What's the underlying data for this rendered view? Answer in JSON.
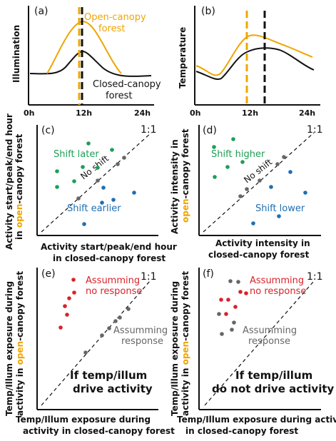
{
  "colors": {
    "open": "#f0a500",
    "closed": "#111111",
    "later": "#1f9e57",
    "earlier": "#1f6fb2",
    "no_response": "#d8232a",
    "response": "#666666"
  },
  "panel_a": {
    "tag": "(a)",
    "ylabel": "Illumination",
    "open_label_1": "Open-canopy",
    "open_label_2": "forest",
    "closed_label_1": "Closed-canopy",
    "closed_label_2": "forest",
    "tick_0": "0h",
    "tick_12": "12h",
    "tick_24": "24h"
  },
  "panel_b": {
    "tag": "(b)",
    "ylabel": "Temperature",
    "tick_0": "0h",
    "tick_12": "12h",
    "tick_24": "24h"
  },
  "panel_c": {
    "tag": "(c)",
    "one_to_one": "1:1",
    "ylabel_1": "Activity start/peak/end hour",
    "ylabel_2a": "in ",
    "ylabel_2b": "open",
    "ylabel_2c": "-canopy forest",
    "xlabel_1": "Activity start/peak/end hour",
    "xlabel_2": "in closed-canopy forest",
    "shift_later": "Shift later",
    "no_shift": "No shift",
    "shift_earlier": "Shift earlier"
  },
  "panel_d": {
    "tag": "(d)",
    "one_to_one": "1:1",
    "ylabel_1": "Activity intensity in",
    "ylabel_2a": "open",
    "ylabel_2b": "-canopy forest",
    "xlabel_1": "Activity intensity in",
    "xlabel_2": "closed-canopy forest",
    "shift_higher": "Shift higher",
    "no_shift": "No shift",
    "shift_lower": "Shift lower"
  },
  "panel_e": {
    "tag": "(e)",
    "one_to_one": "1:1",
    "ylabel_1": "Temp/Illum exposure during",
    "ylabel_2a": "activity in ",
    "ylabel_2b": "open",
    "ylabel_2c": "-canopy forest",
    "xlabel_1": "Temp/Illum exposure during",
    "xlabel_2": "activity in closed-canopy forest",
    "no_response_1": "Assumming",
    "no_response_2": "no response",
    "response_1": "Assumming",
    "response_2": "response",
    "caption_1": "If temp/illum",
    "caption_2": "drive activity"
  },
  "panel_f": {
    "tag": "(f)",
    "one_to_one": "1:1",
    "ylabel_1": "Temp/Illum exposure during",
    "ylabel_2a": "activity in ",
    "ylabel_2b": "open",
    "ylabel_2c": "-canopy forest",
    "xlabel_1": "Temp/Illum exposure during activity",
    "xlabel_2": "in closed-canopy forest",
    "no_response_1": "Assumming",
    "no_response_2": "no response",
    "response_1": "Assumming",
    "response_2": "response",
    "caption_1": "If temp/illum",
    "caption_2": "do not drive activity"
  }
}
